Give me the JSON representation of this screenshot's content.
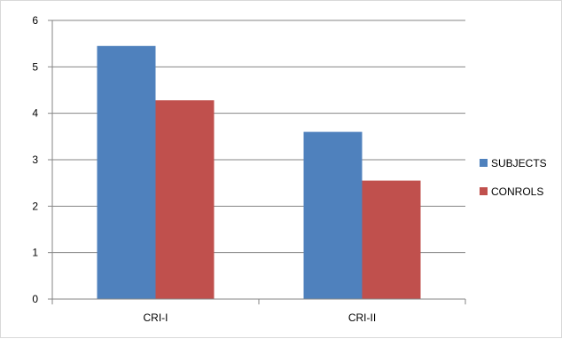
{
  "chart_data": {
    "type": "bar",
    "categories": [
      "CRI-I",
      "CRI-II"
    ],
    "series": [
      {
        "name": "SUBJECTS",
        "values": [
          5.45,
          3.6
        ],
        "color": "#4f81bd"
      },
      {
        "name": "CONROLS",
        "values": [
          4.28,
          2.55
        ],
        "color": "#c0504d"
      }
    ],
    "ylim": [
      0,
      6
    ],
    "yticks": [
      "0",
      "1",
      "2",
      "3",
      "4",
      "5",
      "6"
    ],
    "grid": true,
    "legend": "right"
  }
}
